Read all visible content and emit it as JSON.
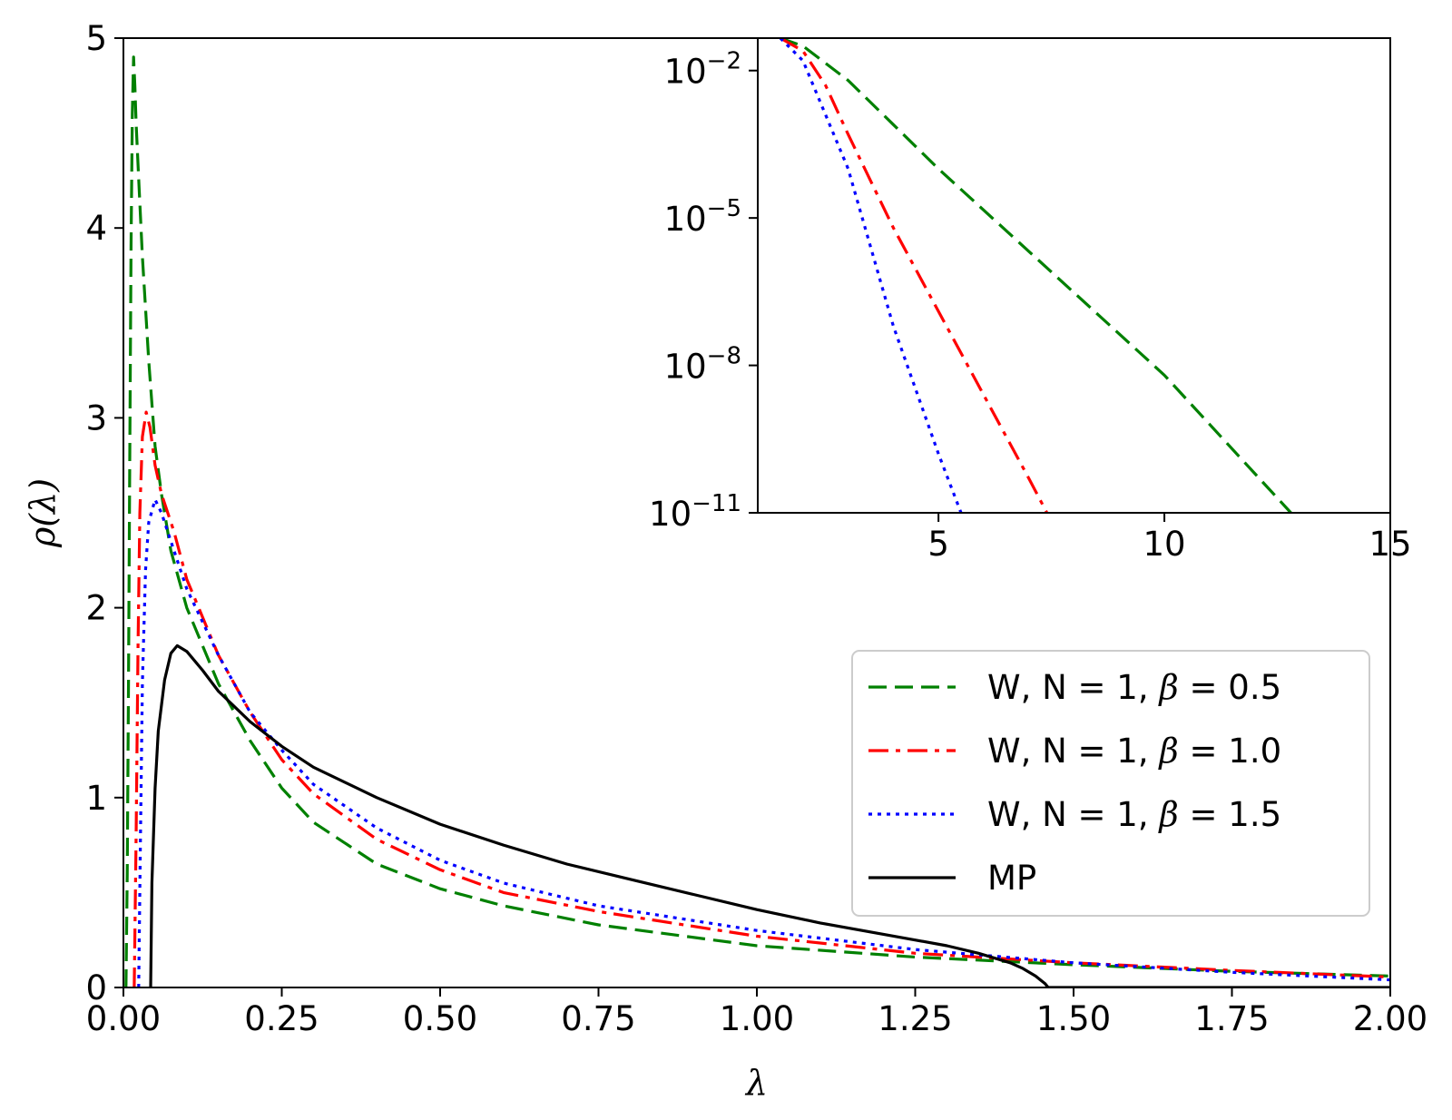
{
  "chart_data": [
    {
      "id": "main",
      "type": "line",
      "xlabel": "λ",
      "ylabel": "ρ(λ)",
      "xlim": [
        0,
        2
      ],
      "ylim": [
        0,
        5
      ],
      "xticks": [
        {
          "v": 0,
          "label": "0.00"
        },
        {
          "v": 0.25,
          "label": "0.25"
        },
        {
          "v": 0.5,
          "label": "0.50"
        },
        {
          "v": 0.75,
          "label": "0.75"
        },
        {
          "v": 1.0,
          "label": "1.00"
        },
        {
          "v": 1.25,
          "label": "1.25"
        },
        {
          "v": 1.5,
          "label": "1.50"
        },
        {
          "v": 1.75,
          "label": "1.75"
        },
        {
          "v": 2.0,
          "label": "2.00"
        }
      ],
      "yticks": [
        {
          "v": 0,
          "label": "0"
        },
        {
          "v": 1,
          "label": "1"
        },
        {
          "v": 2,
          "label": "2"
        },
        {
          "v": 3,
          "label": "3"
        },
        {
          "v": 4,
          "label": "4"
        },
        {
          "v": 5,
          "label": "5"
        }
      ],
      "legend_position": "lower-right",
      "series": [
        {
          "name": "W, N = 1, β = 0.5",
          "label_prefix": "W, N = 1, ",
          "beta_symbol": "β",
          "beta_value": "= 0.5",
          "color": "#008000",
          "dash": "dashed",
          "points": [
            [
              0.004,
              0
            ],
            [
              0.006,
              0.6
            ],
            [
              0.008,
              1.6
            ],
            [
              0.01,
              2.8
            ],
            [
              0.012,
              3.9
            ],
            [
              0.014,
              4.6
            ],
            [
              0.016,
              4.9
            ],
            [
              0.018,
              4.75
            ],
            [
              0.02,
              4.55
            ],
            [
              0.025,
              4.2
            ],
            [
              0.03,
              3.85
            ],
            [
              0.04,
              3.3
            ],
            [
              0.05,
              2.85
            ],
            [
              0.06,
              2.6
            ],
            [
              0.075,
              2.3
            ],
            [
              0.1,
              2.0
            ],
            [
              0.15,
              1.6
            ],
            [
              0.2,
              1.3
            ],
            [
              0.25,
              1.05
            ],
            [
              0.3,
              0.87
            ],
            [
              0.4,
              0.65
            ],
            [
              0.5,
              0.52
            ],
            [
              0.6,
              0.43
            ],
            [
              0.75,
              0.33
            ],
            [
              1.0,
              0.22
            ],
            [
              1.25,
              0.16
            ],
            [
              1.5,
              0.12
            ],
            [
              1.75,
              0.085
            ],
            [
              2.0,
              0.06
            ]
          ]
        },
        {
          "name": "W, N = 1, β = 1.0",
          "label_prefix": "W, N = 1, ",
          "beta_symbol": "β",
          "beta_value": "= 1.0",
          "color": "#ff0000",
          "dash": "dashdot",
          "points": [
            [
              0.017,
              0
            ],
            [
              0.02,
              0.8
            ],
            [
              0.023,
              1.8
            ],
            [
              0.026,
              2.5
            ],
            [
              0.03,
              2.9
            ],
            [
              0.036,
              3.03
            ],
            [
              0.042,
              2.95
            ],
            [
              0.05,
              2.75
            ],
            [
              0.06,
              2.6
            ],
            [
              0.08,
              2.4
            ],
            [
              0.1,
              2.15
            ],
            [
              0.15,
              1.75
            ],
            [
              0.2,
              1.45
            ],
            [
              0.25,
              1.2
            ],
            [
              0.3,
              1.02
            ],
            [
              0.4,
              0.78
            ],
            [
              0.5,
              0.62
            ],
            [
              0.6,
              0.5
            ],
            [
              0.75,
              0.4
            ],
            [
              1.0,
              0.27
            ],
            [
              1.25,
              0.18
            ],
            [
              1.5,
              0.13
            ],
            [
              1.75,
              0.09
            ],
            [
              2.0,
              0.055
            ]
          ]
        },
        {
          "name": "W, N = 1, β = 1.5",
          "label_prefix": "W, N = 1, ",
          "beta_symbol": "β",
          "beta_value": "= 1.5",
          "color": "#0000ff",
          "dash": "dotted",
          "points": [
            [
              0.024,
              0
            ],
            [
              0.027,
              0.8
            ],
            [
              0.03,
              1.6
            ],
            [
              0.035,
              2.2
            ],
            [
              0.04,
              2.45
            ],
            [
              0.05,
              2.57
            ],
            [
              0.06,
              2.5
            ],
            [
              0.075,
              2.35
            ],
            [
              0.1,
              2.1
            ],
            [
              0.15,
              1.75
            ],
            [
              0.2,
              1.45
            ],
            [
              0.25,
              1.25
            ],
            [
              0.3,
              1.07
            ],
            [
              0.4,
              0.84
            ],
            [
              0.5,
              0.67
            ],
            [
              0.6,
              0.55
            ],
            [
              0.75,
              0.43
            ],
            [
              1.0,
              0.3
            ],
            [
              1.25,
              0.2
            ],
            [
              1.5,
              0.13
            ],
            [
              1.75,
              0.08
            ],
            [
              2.0,
              0.04
            ]
          ]
        },
        {
          "name": "MP",
          "color": "#000000",
          "dash": "solid",
          "points": [
            [
              0.043,
              0
            ],
            [
              0.045,
              0.55
            ],
            [
              0.05,
              1.05
            ],
            [
              0.055,
              1.35
            ],
            [
              0.065,
              1.62
            ],
            [
              0.075,
              1.76
            ],
            [
              0.085,
              1.8
            ],
            [
              0.1,
              1.77
            ],
            [
              0.125,
              1.67
            ],
            [
              0.15,
              1.56
            ],
            [
              0.2,
              1.4
            ],
            [
              0.25,
              1.27
            ],
            [
              0.3,
              1.16
            ],
            [
              0.4,
              1.0
            ],
            [
              0.5,
              0.86
            ],
            [
              0.6,
              0.75
            ],
            [
              0.7,
              0.65
            ],
            [
              0.8,
              0.57
            ],
            [
              0.9,
              0.49
            ],
            [
              1.0,
              0.41
            ],
            [
              1.1,
              0.34
            ],
            [
              1.2,
              0.28
            ],
            [
              1.3,
              0.22
            ],
            [
              1.35,
              0.18
            ],
            [
              1.4,
              0.13
            ],
            [
              1.42,
              0.1
            ],
            [
              1.44,
              0.06
            ],
            [
              1.455,
              0.02
            ],
            [
              1.46,
              0
            ],
            [
              2.0,
              0
            ]
          ]
        }
      ]
    },
    {
      "id": "inset",
      "type": "line",
      "yscale": "log",
      "xlim": [
        1,
        15
      ],
      "ylog_lim": [
        -11,
        -1.34
      ],
      "xticks": [
        {
          "v": 5,
          "label": "5"
        },
        {
          "v": 10,
          "label": "10"
        },
        {
          "v": 15,
          "label": "15"
        }
      ],
      "yticks": [
        {
          "e": -2,
          "base": "10",
          "exp": "−2"
        },
        {
          "e": -5,
          "base": "10",
          "exp": "−5"
        },
        {
          "e": -8,
          "base": "10",
          "exp": "−8"
        },
        {
          "e": -11,
          "base": "10",
          "exp": "−11"
        }
      ],
      "series": [
        {
          "name": "β = 0.5",
          "color": "#008000",
          "dash": "dashed",
          "points": [
            [
              1.5,
              -1.34
            ],
            [
              2.0,
              -1.5
            ],
            [
              3.0,
              -2.2
            ],
            [
              4.0,
              -3.1
            ],
            [
              5.0,
              -4.0
            ],
            [
              7.5,
              -6.1
            ],
            [
              10.0,
              -8.2
            ],
            [
              12.8,
              -11
            ]
          ]
        },
        {
          "name": "β = 1.0",
          "color": "#ff0000",
          "dash": "dashdot",
          "points": [
            [
              1.5,
              -1.34
            ],
            [
              2.0,
              -1.6
            ],
            [
              2.5,
              -2.3
            ],
            [
              3.0,
              -3.3
            ],
            [
              4.0,
              -5.2
            ],
            [
              5.0,
              -6.9
            ],
            [
              6.0,
              -8.6
            ],
            [
              7.0,
              -10.3
            ],
            [
              7.4,
              -11
            ]
          ]
        },
        {
          "name": "β = 1.5",
          "color": "#0000ff",
          "dash": "dotted",
          "points": [
            [
              1.5,
              -1.34
            ],
            [
              2.0,
              -1.8
            ],
            [
              3.0,
              -4.0
            ],
            [
              4.0,
              -7.2
            ],
            [
              5.0,
              -9.8
            ],
            [
              5.5,
              -11
            ]
          ]
        }
      ]
    }
  ]
}
